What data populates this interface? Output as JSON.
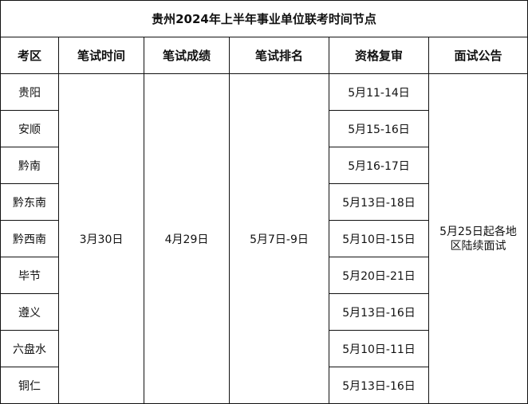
{
  "title": "贵州2024年上半年事业单位联考时间节点",
  "headers": [
    "考区",
    "笔试时间",
    "笔试成绩",
    "笔试排名",
    "资格复审",
    "面试公告"
  ],
  "regions": [
    "贵阳",
    "安顺",
    "黔南",
    "黔东南",
    "黔西南",
    "毕节",
    "遵义",
    "六盘水",
    "铜仁"
  ],
  "review_dates": [
    "5月11-14日",
    "5月15-16日",
    "5月16-17日",
    "5月13日-18日",
    "5月10日-15日",
    "5月20日-21日",
    "5月13日-16日",
    "5月10日-11日",
    "5月13日-16日"
  ],
  "exam_date": "3月30日",
  "score_date": "4月29日",
  "ranking_date": "5月7日-9日",
  "interview_notice": "5月25日起各地区陆续面试"
}
